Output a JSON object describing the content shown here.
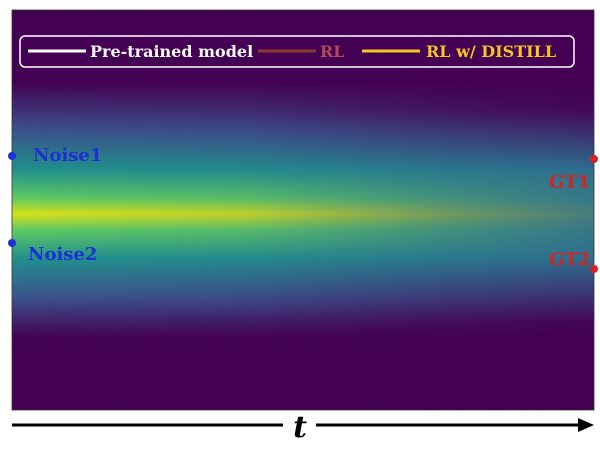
{
  "chart_data": {
    "type": "heatmap",
    "xlabel": "t",
    "legend": {
      "placement": "top",
      "entries": [
        {
          "label": "Pre-trained model",
          "color": "#ffffff"
        },
        {
          "label": "RL",
          "color": "#8b3a2b"
        },
        {
          "label": "RL w/ DISTILL",
          "color": "#f2c81e"
        }
      ]
    },
    "start_points": [
      {
        "label": "Noise1",
        "color": "#1f2fd6"
      },
      {
        "label": "Noise2",
        "color": "#1f2fd6"
      }
    ],
    "end_points": [
      {
        "label": "GT1",
        "color": "#d62424"
      },
      {
        "label": "GT2",
        "color": "#d62424"
      }
    ],
    "colormap": "viridis",
    "grid": false
  }
}
